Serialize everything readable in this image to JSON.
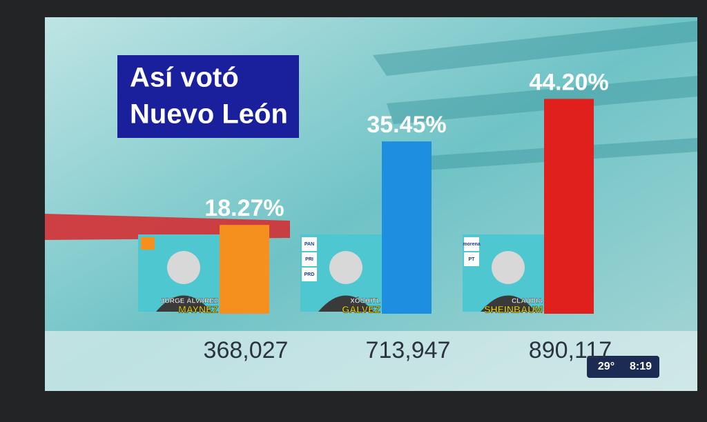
{
  "chart_data": {
    "type": "bar",
    "title": [
      "Así votó",
      "Nuevo León"
    ],
    "categories": [
      "MAYNEZ",
      "GÁLVEZ",
      "SHEINBAUM"
    ],
    "first_names": [
      "JORGE ÁLVAREZ",
      "XÓCHITL",
      "CLAUDIA"
    ],
    "parties": [
      [],
      [
        "PAN",
        "PRI",
        "PRD"
      ],
      [
        "morena",
        "PT"
      ]
    ],
    "values": [
      18.27,
      35.45,
      44.2
    ],
    "value_labels": [
      "18.27%",
      "35.45%",
      "44.20%"
    ],
    "colors": [
      "#f5901e",
      "#1e8fe0",
      "#e0201c"
    ],
    "votes": [
      {
        "value": 368027,
        "label": "368,027"
      },
      {
        "value": 713947,
        "label": "713,947"
      },
      {
        "value": 890117,
        "label": "890,117"
      }
    ]
  },
  "overlay": {
    "temperature": "29°",
    "time": "8:19"
  }
}
